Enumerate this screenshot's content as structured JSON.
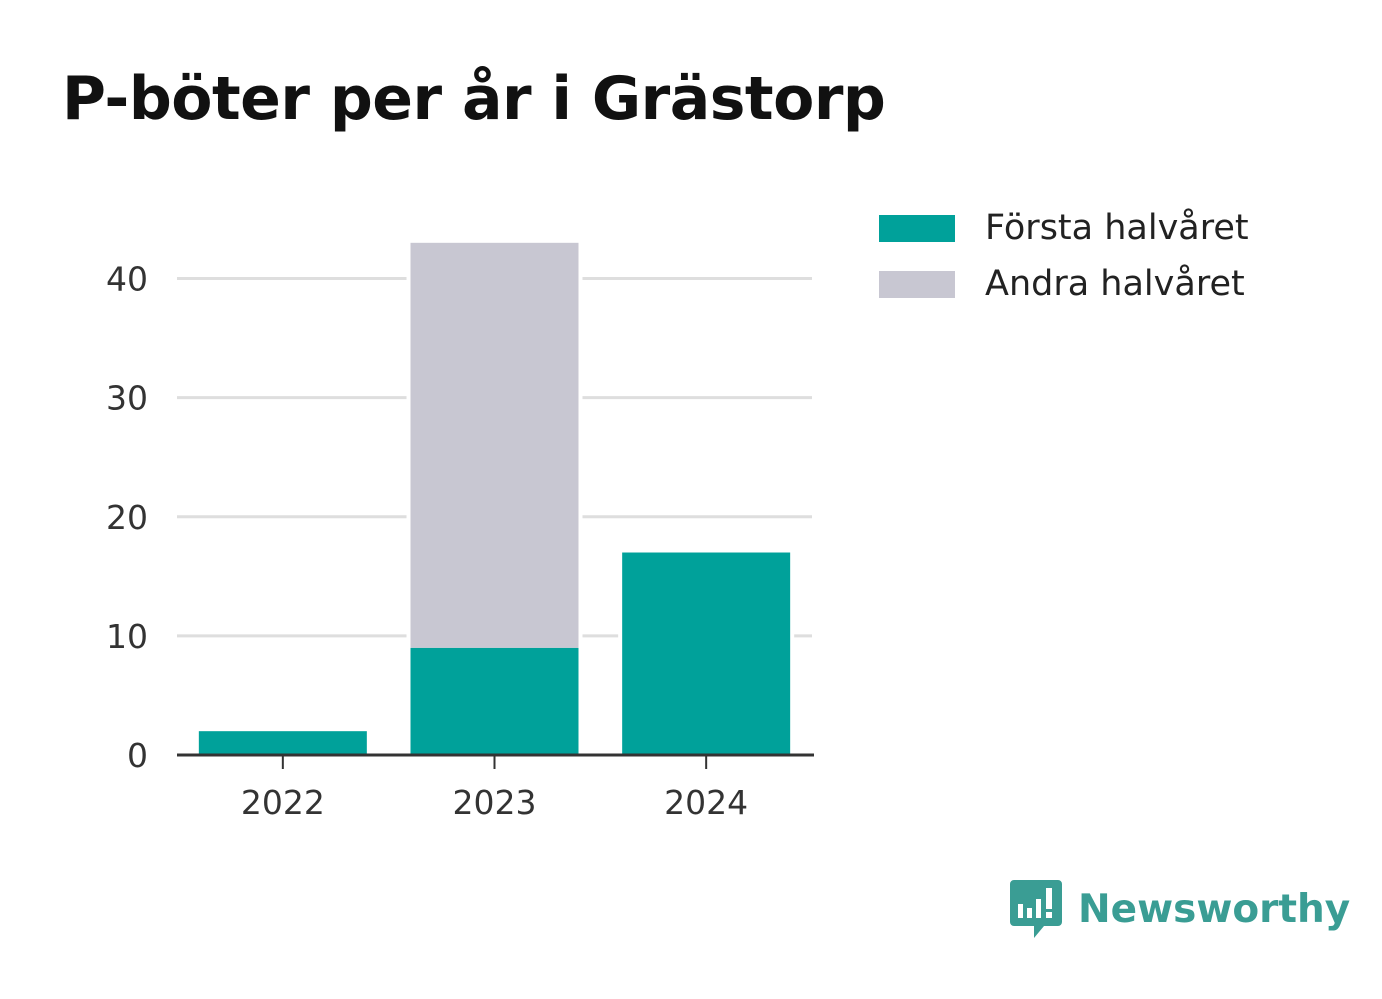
{
  "chart_data": {
    "type": "bar",
    "stacked": true,
    "title": "P-böter per år i Grästorp",
    "categories": [
      "2022",
      "2023",
      "2024"
    ],
    "series": [
      {
        "name": "Första halvåret",
        "values": [
          2,
          9,
          17
        ],
        "color": "#00a19a"
      },
      {
        "name": "Andra halvåret",
        "values": [
          0,
          34,
          0
        ],
        "color": "#c8c7d2"
      }
    ],
    "yticks": [
      0,
      10,
      20,
      30,
      40
    ],
    "ylim": [
      0,
      45
    ],
    "grid": true,
    "legend_position": "top-right"
  },
  "brand": {
    "name": "Newsworthy",
    "color": "#3a9d94",
    "icon": "newsworthy-logo-icon"
  }
}
